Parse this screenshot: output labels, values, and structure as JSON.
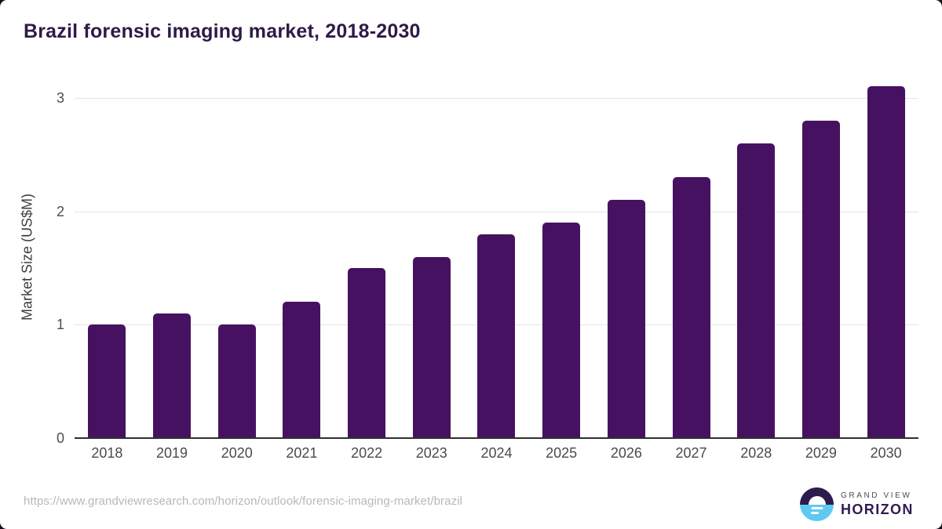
{
  "title": "Brazil forensic imaging market, 2018-2030",
  "chart_data": {
    "type": "bar",
    "title": "Brazil forensic imaging market, 2018-2030",
    "categories": [
      "2018",
      "2019",
      "2020",
      "2021",
      "2022",
      "2023",
      "2024",
      "2025",
      "2026",
      "2027",
      "2028",
      "2029",
      "2030"
    ],
    "values": [
      1.0,
      1.1,
      1.0,
      1.2,
      1.5,
      1.6,
      1.8,
      1.9,
      2.1,
      2.3,
      2.6,
      2.8,
      3.1
    ],
    "xlabel": "",
    "ylabel": "Market Size (US$M)",
    "ylim": [
      0,
      3.2
    ],
    "yticks": [
      0,
      1,
      2,
      3
    ],
    "grid": "horizontal",
    "legend": "none",
    "bar_color": "#471161"
  },
  "colors": {
    "title_text": "#2e1a47",
    "bar_fill": "#471161",
    "gridline": "#e4e4e4",
    "axis_line": "#2f2f2f",
    "tick_text": "#4a4a4a",
    "url_text": "#b8b8b8",
    "logo_dark_purple": "#2d1b4e",
    "logo_light_blue": "#5ec9f2"
  },
  "footer": {
    "source_url": "https://www.grandviewresearch.com/horizon/outlook/forensic-imaging-market/brazil",
    "logo": {
      "line1": "GRAND VIEW",
      "line2": "HORIZON"
    }
  }
}
